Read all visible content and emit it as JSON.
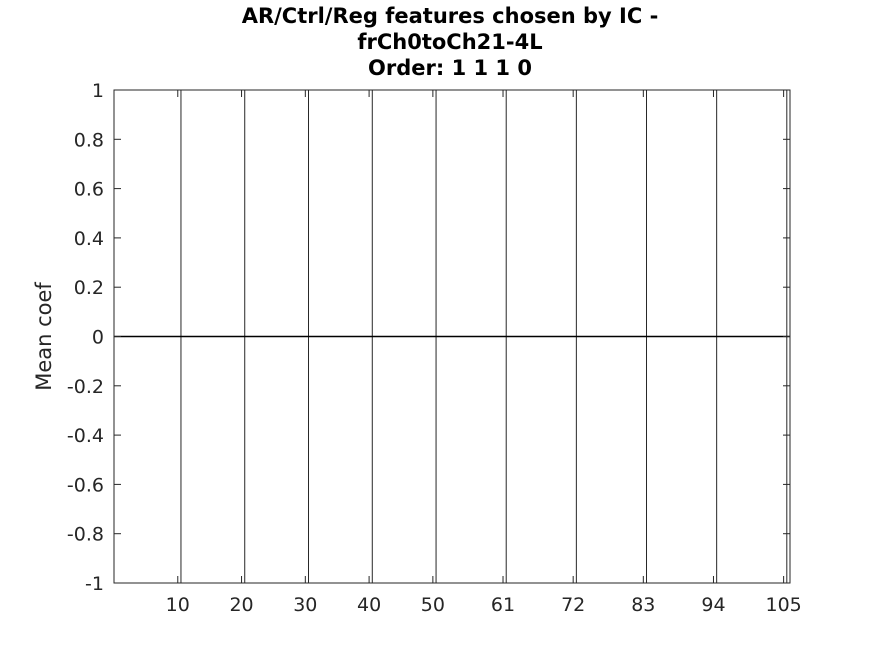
{
  "chart_data": {
    "type": "bar",
    "title": [
      "AR/Ctrl/Reg features chosen by IC -",
      "frCh0toCh21-4L",
      "Order: 1 1 1 0"
    ],
    "xlabel": "",
    "ylabel": "Mean coef",
    "xlim": [
      0,
      106
    ],
    "ylim": [
      -1,
      1
    ],
    "xticks": [
      10,
      20,
      30,
      40,
      50,
      61,
      72,
      83,
      94,
      105
    ],
    "yticks": [
      -1,
      -0.8,
      -0.6,
      -0.4,
      -0.2,
      0,
      0.2,
      0.4,
      0.6,
      0.8,
      1
    ],
    "ytick_labels": [
      "-1",
      "-0.8",
      "-0.6",
      "-0.4",
      "-0.2",
      "0",
      "0.2",
      "0.4",
      "0.6",
      "0.8",
      "1"
    ],
    "vertical_lines": [
      10.5,
      20.5,
      30.5,
      40.5,
      50.5,
      61.5,
      72.5,
      83.5,
      94.5,
      105.5
    ],
    "values": [],
    "baseline": 0,
    "colors": {
      "axis": "#262626",
      "separator": "#262626",
      "baseline": "#000000"
    }
  }
}
